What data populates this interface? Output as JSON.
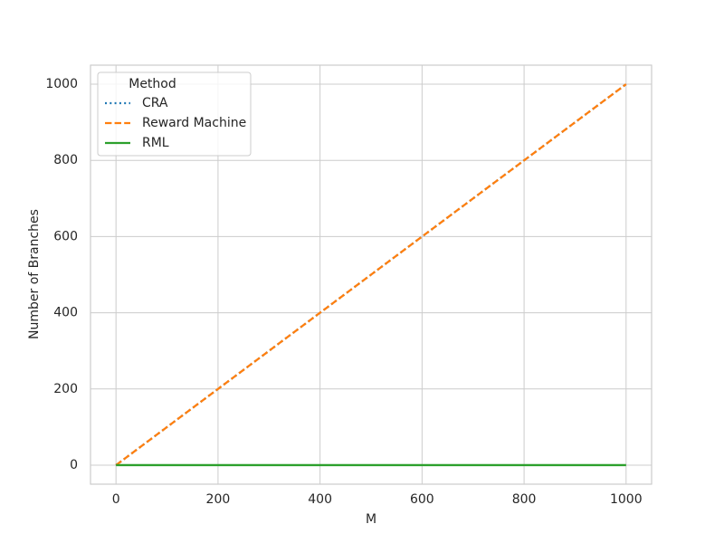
{
  "chart_data": {
    "type": "line",
    "xlabel": "M",
    "ylabel": "Number of Branches",
    "x": [
      0,
      100,
      200,
      300,
      400,
      500,
      600,
      700,
      800,
      900,
      1000
    ],
    "series": [
      {
        "name": "CRA",
        "color": "#1f77b4",
        "linestyle": "dotted",
        "values": [
          0,
          100,
          200,
          300,
          400,
          500,
          600,
          700,
          800,
          900,
          1000
        ]
      },
      {
        "name": "Reward Machine",
        "color": "#ff7f0e",
        "linestyle": "dashed",
        "values": [
          0,
          100,
          200,
          300,
          400,
          500,
          600,
          700,
          800,
          900,
          1000
        ]
      },
      {
        "name": "RML",
        "color": "#2ca02c",
        "linestyle": "solid",
        "values": [
          0,
          0,
          0,
          0,
          0,
          0,
          0,
          0,
          0,
          0,
          0
        ]
      }
    ],
    "legend_title": "Method",
    "legend": "upper left",
    "xlim": [
      -50,
      1050
    ],
    "ylim": [
      -50,
      1050
    ],
    "xticks": [
      0,
      200,
      400,
      600,
      800,
      1000
    ],
    "yticks": [
      0,
      200,
      400,
      600,
      800,
      1000
    ],
    "grid": true
  }
}
